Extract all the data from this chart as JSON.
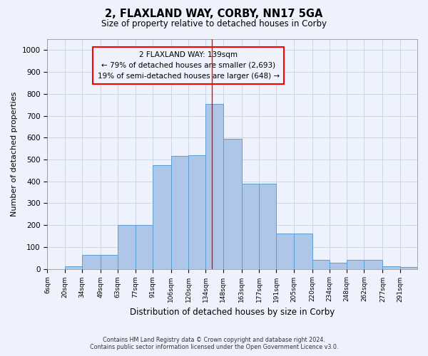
{
  "title": "2, FLAXLAND WAY, CORBY, NN17 5GA",
  "subtitle": "Size of property relative to detached houses in Corby",
  "xlabel": "Distribution of detached houses by size in Corby",
  "ylabel": "Number of detached properties",
  "footer_line1": "Contains HM Land Registry data © Crown copyright and database right 2024.",
  "footer_line2": "Contains public sector information licensed under the Open Government Licence v3.0.",
  "annotation_title": "2 FLAXLAND WAY: 139sqm",
  "annotation_line2": "← 79% of detached houses are smaller (2,693)",
  "annotation_line3": "19% of semi-detached houses are larger (648) →",
  "property_size": 139,
  "bar_labels": [
    "6sqm",
    "20sqm",
    "34sqm",
    "49sqm",
    "63sqm",
    "77sqm",
    "91sqm",
    "106sqm",
    "120sqm",
    "134sqm",
    "148sqm",
    "163sqm",
    "177sqm",
    "191sqm",
    "205sqm",
    "220sqm",
    "234sqm",
    "248sqm",
    "262sqm",
    "277sqm",
    "291sqm"
  ],
  "bar_left_edges": [
    6,
    20,
    34,
    49,
    63,
    77,
    91,
    106,
    120,
    134,
    148,
    163,
    177,
    191,
    205,
    220,
    234,
    248,
    262,
    277,
    291
  ],
  "bar_right_edges": [
    20,
    34,
    49,
    63,
    77,
    91,
    106,
    120,
    134,
    148,
    163,
    177,
    191,
    205,
    220,
    234,
    248,
    262,
    277,
    291,
    305
  ],
  "bar_heights": [
    0,
    12,
    65,
    65,
    200,
    200,
    475,
    515,
    520,
    755,
    595,
    390,
    390,
    160,
    160,
    40,
    28,
    42,
    42,
    12,
    7
  ],
  "bar_color": "#aec6e8",
  "bar_edge_color": "#5a9fd4",
  "line_color": "red",
  "annotation_box_color": "red",
  "background_color": "#eef2fc",
  "grid_color": "#c8d0e8",
  "ylim": [
    0,
    1050
  ],
  "yticks": [
    0,
    100,
    200,
    300,
    400,
    500,
    600,
    700,
    800,
    900,
    1000
  ],
  "xlim_left": 6,
  "xlim_right": 305
}
